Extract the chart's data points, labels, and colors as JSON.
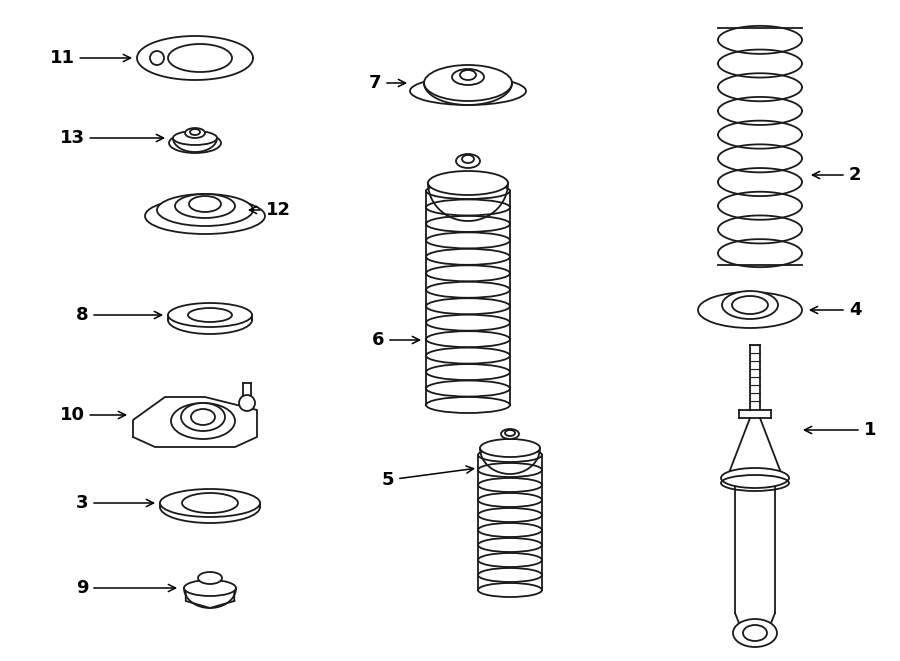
{
  "bg_color": "#ffffff",
  "line_color": "#1a1a1a",
  "label_color": "#000000",
  "figsize": [
    9.0,
    6.61
  ],
  "dpi": 100
}
